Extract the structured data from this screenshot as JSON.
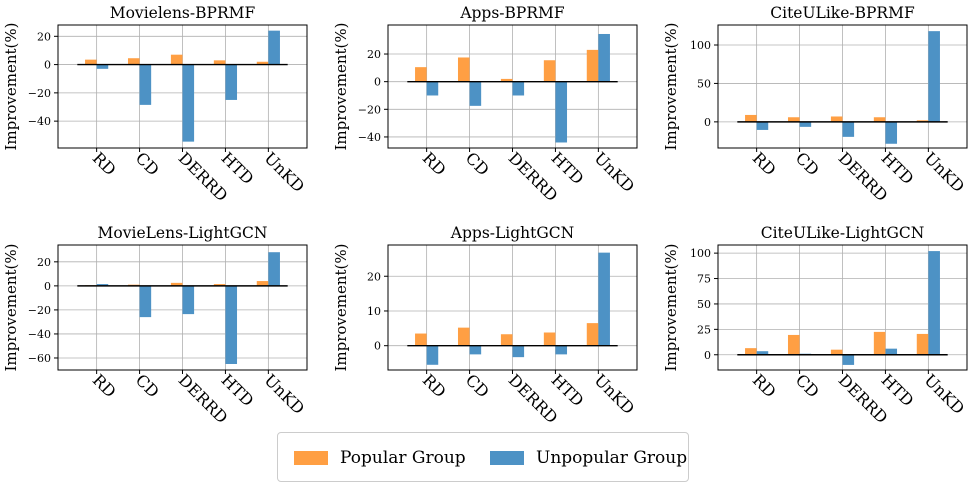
{
  "colors": {
    "popular": "#ff9f43",
    "unpopular": "#4d92c5",
    "grid": "#b0b0b0",
    "axis": "#000000"
  },
  "legend": {
    "placement": "bottom-center",
    "items": [
      {
        "label": "Popular Group",
        "color": "#ff9f43"
      },
      {
        "label": "Unpopular Group",
        "color": "#4d92c5"
      }
    ]
  },
  "chart_data": [
    {
      "type": "bar",
      "title": "Movielens-BPRMF",
      "ylabel": "Improvement(%)",
      "xlabel": "",
      "categories": [
        "RD",
        "CD",
        "DERRD",
        "HTD",
        "UnKD"
      ],
      "series": [
        {
          "name": "Popular Group",
          "values": [
            3.5,
            4.5,
            7,
            3,
            2
          ]
        },
        {
          "name": "Unpopular Group",
          "values": [
            -3,
            -28.5,
            -54.5,
            -25,
            24
          ]
        }
      ],
      "ylim": [
        -59,
        28
      ],
      "yticks": [
        -40,
        -20,
        0,
        20
      ],
      "grid": true
    },
    {
      "type": "bar",
      "title": "Apps-BPRMF",
      "ylabel": "Improvement(%)",
      "xlabel": "",
      "categories": [
        "RD",
        "CD",
        "DERRD",
        "HTD",
        "UnKD"
      ],
      "series": [
        {
          "name": "Popular Group",
          "values": [
            10.5,
            17.5,
            2,
            15.5,
            23
          ]
        },
        {
          "name": "Unpopular Group",
          "values": [
            -10,
            -17.5,
            -10,
            -44,
            34.5
          ]
        }
      ],
      "ylim": [
        -48,
        41
      ],
      "yticks": [
        -40,
        -20,
        0,
        20
      ],
      "grid": true
    },
    {
      "type": "bar",
      "title": "CiteULike-BPRMF",
      "ylabel": "Improvement(%)",
      "xlabel": "",
      "categories": [
        "RD",
        "CD",
        "DERRD",
        "HTD",
        "UnKD"
      ],
      "series": [
        {
          "name": "Popular Group",
          "values": [
            9,
            6,
            7,
            6,
            2
          ]
        },
        {
          "name": "Unpopular Group",
          "values": [
            -10.5,
            -6.5,
            -19.5,
            -28.5,
            118
          ]
        }
      ],
      "ylim": [
        -34,
        126
      ],
      "yticks": [
        0,
        50,
        100
      ],
      "grid": true
    },
    {
      "type": "bar",
      "title": "MovieLens-LightGCN",
      "ylabel": "Improvement(%)",
      "xlabel": "",
      "categories": [
        "RD",
        "CD",
        "DERRD",
        "HTD",
        "UnKD"
      ],
      "series": [
        {
          "name": "Popular Group",
          "values": [
            0.5,
            1,
            2.5,
            1.5,
            4
          ]
        },
        {
          "name": "Unpopular Group",
          "values": [
            1.5,
            -26,
            -23.5,
            -65,
            28
          ]
        }
      ],
      "ylim": [
        -70,
        34
      ],
      "yticks": [
        -60,
        -40,
        -20,
        0,
        20
      ],
      "grid": true
    },
    {
      "type": "bar",
      "title": "Apps-LightGCN",
      "ylabel": "Improvement(%)",
      "xlabel": "",
      "categories": [
        "RD",
        "CD",
        "DERRD",
        "HTD",
        "UnKD"
      ],
      "series": [
        {
          "name": "Popular Group",
          "values": [
            3.5,
            5.2,
            3.3,
            3.8,
            6.5
          ]
        },
        {
          "name": "Unpopular Group",
          "values": [
            -5.5,
            -2.5,
            -3.3,
            -2.5,
            26.8
          ]
        }
      ],
      "ylim": [
        -7,
        29
      ],
      "yticks": [
        0,
        10,
        20
      ],
      "grid": true
    },
    {
      "type": "bar",
      "title": "CiteULike-LightGCN",
      "ylabel": "Improvement(%)",
      "xlabel": "",
      "categories": [
        "RD",
        "CD",
        "DERRD",
        "HTD",
        "UnKD"
      ],
      "series": [
        {
          "name": "Popular Group",
          "values": [
            6.5,
            19.5,
            5,
            22.5,
            20.5
          ]
        },
        {
          "name": "Unpopular Group",
          "values": [
            3.5,
            1,
            -10,
            6,
            102
          ]
        }
      ],
      "ylim": [
        -15,
        108
      ],
      "yticks": [
        0,
        25,
        50,
        75,
        100
      ],
      "grid": true
    }
  ]
}
